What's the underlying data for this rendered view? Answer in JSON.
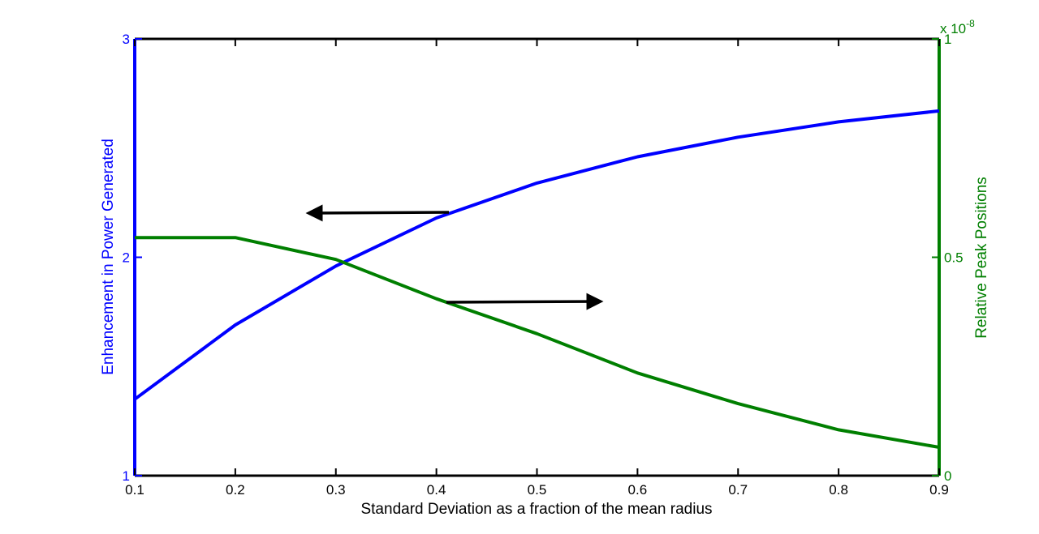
{
  "chart_data": {
    "type": "line",
    "xlabel": "Standard Deviation as a fraction of the mean radius",
    "ylabel_left": "Enhancement in Power Generated",
    "ylabel_right": "Relative Peak Positions",
    "right_axis_multiplier": "x 10",
    "right_axis_exponent": "-8",
    "x": [
      0.1,
      0.2,
      0.3,
      0.4,
      0.5,
      0.6,
      0.7,
      0.8,
      0.9
    ],
    "xticks": [
      "0.1",
      "0.2",
      "0.3",
      "0.4",
      "0.5",
      "0.6",
      "0.7",
      "0.8",
      "0.9"
    ],
    "xlim": [
      0.1,
      0.9
    ],
    "ylim_left": [
      1,
      3
    ],
    "yticks_left": [
      "1",
      "2",
      "3"
    ],
    "ylim_right": [
      0,
      1
    ],
    "yticks_right": [
      "0",
      "0.5",
      "1"
    ],
    "grid": false,
    "colors": {
      "left": "#0000ff",
      "right": "#007f00",
      "frame": "#000000",
      "arrow": "#000000"
    },
    "series": [
      {
        "axis": "left",
        "values": [
          1.35,
          1.69,
          1.96,
          2.18,
          2.34,
          2.46,
          2.55,
          2.62,
          2.67
        ]
      },
      {
        "axis": "right",
        "values": [
          0.545,
          0.545,
          0.495,
          0.405,
          0.325,
          0.235,
          0.165,
          0.105,
          0.065
        ]
      }
    ],
    "annotations": [
      {
        "type": "arrow",
        "direction": "left",
        "points_to": "left-axis"
      },
      {
        "type": "arrow",
        "direction": "right",
        "points_to": "right-axis"
      }
    ]
  }
}
